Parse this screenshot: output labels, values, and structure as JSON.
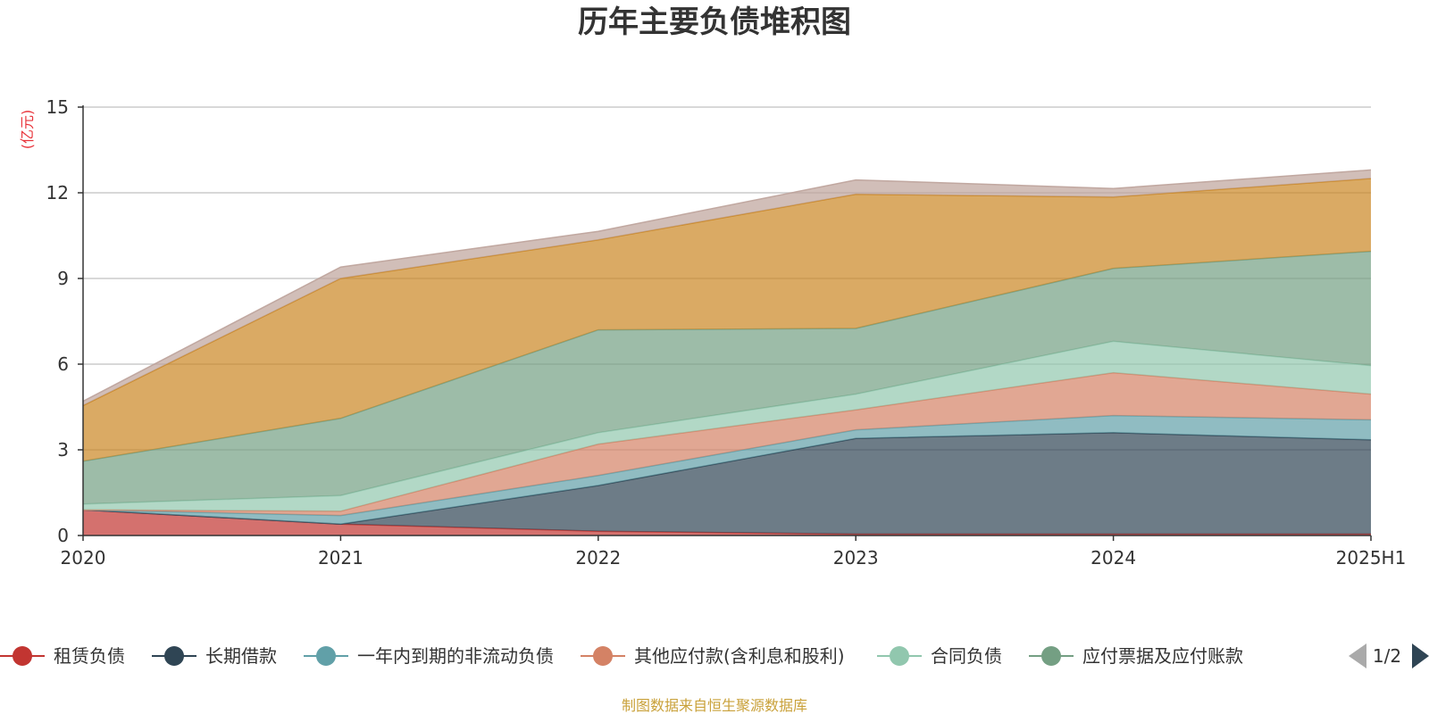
{
  "chart_data": {
    "type": "area",
    "stacked": true,
    "title": "历年主要负债堆积图",
    "ylabel": "(亿元)",
    "xlabel": "",
    "categories": [
      "2020",
      "2021",
      "2022",
      "2023",
      "2024",
      "2025H1"
    ],
    "ylim": [
      0,
      15
    ],
    "yticks": [
      0,
      3,
      6,
      9,
      12,
      15
    ],
    "grid": true,
    "series": [
      {
        "name": "租赁负债",
        "color": "#c23531",
        "values": [
          0.9,
          0.4,
          0.15,
          0.05,
          0.05,
          0.05
        ]
      },
      {
        "name": "长期借款",
        "color": "#2f4554",
        "values": [
          0.0,
          0.0,
          1.6,
          3.35,
          3.55,
          3.3
        ]
      },
      {
        "name": "一年内到期的非流动负债",
        "color": "#61a0a8",
        "values": [
          0.0,
          0.3,
          0.35,
          0.3,
          0.6,
          0.7
        ]
      },
      {
        "name": "其他应付款(含利息和股利)",
        "color": "#d48265",
        "values": [
          0.0,
          0.15,
          1.1,
          0.7,
          1.5,
          0.9
        ]
      },
      {
        "name": "合同负债",
        "color": "#91c7ae",
        "values": [
          0.2,
          0.55,
          0.4,
          0.55,
          1.1,
          1.0
        ]
      },
      {
        "name": "应付票据及应付账款",
        "color": "#749f83",
        "values": [
          1.5,
          2.7,
          3.6,
          2.3,
          2.55,
          4.0
        ]
      },
      {
        "name": "",
        "color": "#ca8622",
        "values": [
          1.95,
          4.9,
          3.15,
          4.7,
          2.5,
          2.55
        ]
      },
      {
        "name": "",
        "color": "#bda29a",
        "values": [
          0.15,
          0.4,
          0.3,
          0.5,
          0.3,
          0.3
        ]
      }
    ],
    "legend": {
      "position": "bottom",
      "visible_count": 6,
      "page_indicator": "1/2"
    },
    "source_note": "制图数据来自恒生聚源数据库"
  }
}
